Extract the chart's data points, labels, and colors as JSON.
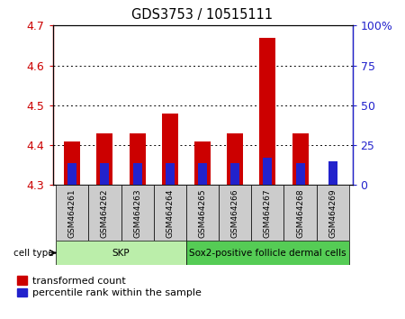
{
  "title": "GDS3753 / 10515111",
  "samples": [
    "GSM464261",
    "GSM464262",
    "GSM464263",
    "GSM464264",
    "GSM464265",
    "GSM464266",
    "GSM464267",
    "GSM464268",
    "GSM464269"
  ],
  "transformed_count": [
    4.41,
    4.43,
    4.43,
    4.48,
    4.41,
    4.43,
    4.67,
    4.43,
    4.3
  ],
  "percentile_rank": [
    14,
    14,
    14,
    14,
    14,
    14,
    17,
    14,
    15
  ],
  "baseline": 4.3,
  "ylim_left": [
    4.3,
    4.7
  ],
  "ylim_right": [
    0,
    100
  ],
  "yticks_left": [
    4.3,
    4.4,
    4.5,
    4.6,
    4.7
  ],
  "yticks_right": [
    0,
    25,
    50,
    75,
    100
  ],
  "cell_types": [
    {
      "label": "SKP",
      "start": 0,
      "end": 4,
      "color": "#bbeeaa"
    },
    {
      "label": "Sox2-positive follicle dermal cells",
      "start": 4,
      "end": 9,
      "color": "#55cc55"
    }
  ],
  "bar_color_red": "#cc0000",
  "bar_color_blue": "#2222cc",
  "bar_width": 0.5,
  "background_color": "#ffffff",
  "plot_bg_color": "#ffffff",
  "tick_label_color_left": "#cc0000",
  "tick_label_color_right": "#2222cc",
  "grid_color": "#000000",
  "xtick_bg_color": "#cccccc",
  "legend_red_label": "transformed count",
  "legend_blue_label": "percentile rank within the sample"
}
